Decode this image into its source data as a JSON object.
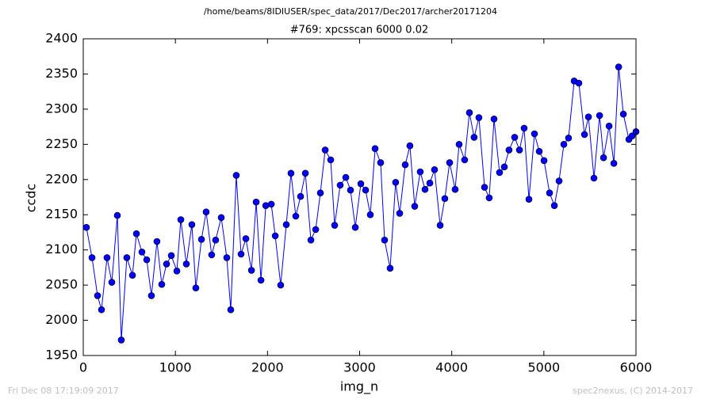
{
  "chart_data": {
    "type": "line",
    "header": "/home/beams/8IDIUSER/spec_data/2017/Dec2017/archer20171204",
    "title": "#769: xpcsscan 6000 0.02",
    "xlabel": "img_n",
    "ylabel": "ccdc",
    "footer_left": "Fri Dec 08 17:19:09 2017",
    "footer_right": "spec2nexus, (C) 2014-2017",
    "color": "#0000ff",
    "x": [
      34,
      95,
      155,
      198,
      258,
      310,
      370,
      413,
      473,
      534,
      577,
      637,
      689,
      740,
      800,
      852,
      904,
      956,
      1016,
      1059,
      1119,
      1179,
      1222,
      1283,
      1334,
      1394,
      1437,
      1498,
      1558,
      1601,
      1661,
      1713,
      1765,
      1826,
      1877,
      1929,
      1981,
      2041,
      2084,
      2143,
      2204,
      2255,
      2307,
      2359,
      2411,
      2471,
      2523,
      2574,
      2626,
      2686,
      2729,
      2789,
      2850,
      2901,
      2953,
      3013,
      3065,
      3116,
      3168,
      3228,
      3271,
      3331,
      3391,
      3435,
      3495,
      3546,
      3598,
      3658,
      3710,
      3762,
      3813,
      3874,
      3925,
      3977,
      4037,
      4080,
      4140,
      4192,
      4243,
      4295,
      4356,
      4407,
      4459,
      4519,
      4571,
      4622,
      4683,
      4735,
      4786,
      4838,
      4898,
      4950,
      5002,
      5062,
      5114,
      5165,
      5217,
      5268,
      5329,
      5380,
      5441,
      5484,
      5544,
      5605,
      5648,
      5708,
      5760,
      5812,
      5863,
      5923,
      5958,
      6000
    ],
    "values": [
      2132,
      2089,
      2035,
      2015,
      2089,
      2054,
      2149,
      1972,
      2089,
      2064,
      2123,
      2097,
      2086,
      2035,
      2112,
      2051,
      2080,
      2092,
      2070,
      2143,
      2080,
      2136,
      2046,
      2115,
      2154,
      2093,
      2114,
      2146,
      2089,
      2015,
      2206,
      2094,
      2116,
      2071,
      2168,
      2057,
      2163,
      2165,
      2120,
      2050,
      2136,
      2209,
      2148,
      2176,
      2209,
      2114,
      2129,
      2181,
      2242,
      2228,
      2135,
      2192,
      2203,
      2185,
      2132,
      2194,
      2185,
      2150,
      2244,
      2224,
      2114,
      2074,
      2196,
      2152,
      2221,
      2248,
      2162,
      2211,
      2186,
      2195,
      2214,
      2135,
      2173,
      2224,
      2186,
      2250,
      2228,
      2295,
      2260,
      2288,
      2189,
      2174,
      2286,
      2210,
      2218,
      2242,
      2260,
      2242,
      2273,
      2172,
      2265,
      2240,
      2227,
      2181,
      2163,
      2198,
      2250,
      2259,
      2340,
      2337,
      2264,
      2289,
      2202,
      2291,
      2231,
      2276,
      2223,
      2360,
      2293,
      2257,
      2262,
      2268
    ],
    "xlim": [
      0,
      6000
    ],
    "xticks": [
      0,
      1000,
      2000,
      3000,
      4000,
      5000,
      6000
    ],
    "ylim": [
      1950,
      2400
    ],
    "yticks": [
      1950,
      2000,
      2050,
      2100,
      2150,
      2200,
      2250,
      2300,
      2350,
      2400
    ]
  }
}
